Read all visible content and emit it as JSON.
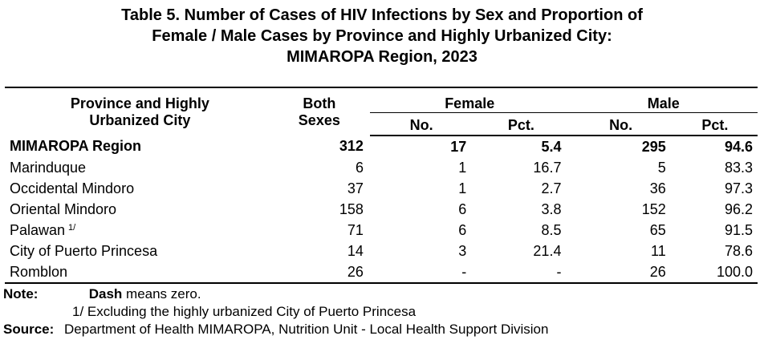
{
  "title": {
    "line1": "Table 5. Number of Cases of HIV Infections by Sex and Proportion of",
    "line2": "Female / Male Cases by Province and Highly Urbanized City:",
    "line3": "MIMAROPA Region, 2023"
  },
  "table": {
    "headers": {
      "province_line1": "Province and Highly",
      "province_line2": "Urbanized City",
      "both_line1": "Both",
      "both_line2": "Sexes",
      "female": "Female",
      "male": "Male",
      "no": "No.",
      "pct": "Pct."
    },
    "rows": [
      {
        "name": "MIMAROPA Region",
        "footnote": "",
        "both": "312",
        "f_no": "17",
        "f_pct": "5.4",
        "m_no": "295",
        "m_pct": "94.6"
      },
      {
        "name": "Marinduque",
        "footnote": "",
        "both": "6",
        "f_no": "1",
        "f_pct": "16.7",
        "m_no": "5",
        "m_pct": "83.3"
      },
      {
        "name": "Occidental Mindoro",
        "footnote": "",
        "both": "37",
        "f_no": "1",
        "f_pct": "2.7",
        "m_no": "36",
        "m_pct": "97.3"
      },
      {
        "name": "Oriental Mindoro",
        "footnote": "",
        "both": "158",
        "f_no": "6",
        "f_pct": "3.8",
        "m_no": "152",
        "m_pct": "96.2"
      },
      {
        "name": "Palawan",
        "footnote": "1/",
        "both": "71",
        "f_no": "6",
        "f_pct": "8.5",
        "m_no": "65",
        "m_pct": "91.5"
      },
      {
        "name": "City of Puerto Princesa",
        "footnote": "",
        "both": "14",
        "f_no": "3",
        "f_pct": "21.4",
        "m_no": "11",
        "m_pct": "78.6"
      },
      {
        "name": "Romblon",
        "footnote": "",
        "both": "26",
        "f_no": "-",
        "f_pct": "-",
        "m_no": "26",
        "m_pct": "100.0"
      }
    ]
  },
  "notes": {
    "note_label": "Note:",
    "dash_bold": "Dash",
    "dash_text": " means zero.",
    "footnote": "1/ Excluding the highly urbanized City of Puerto Princesa",
    "source_label": "Source:",
    "source_text": "Department of Health MIMAROPA, Nutrition Unit - Local Health Support Division"
  }
}
